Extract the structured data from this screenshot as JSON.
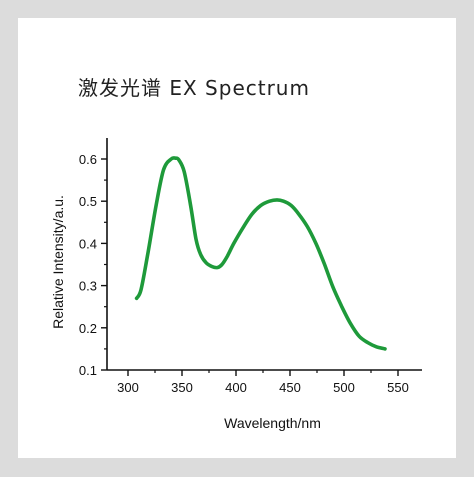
{
  "chart_data": {
    "type": "line",
    "title": "激发光谱 EX Spectrum",
    "xlabel": "Wavelength/nm",
    "ylabel": "Relative  Intensity/a.u.",
    "xlim": [
      300,
      560
    ],
    "ylim": [
      0.1,
      0.6
    ],
    "xticks": [
      300,
      350,
      400,
      450,
      500,
      550
    ],
    "yticks": [
      0.1,
      0.2,
      0.3,
      0.4,
      0.5,
      0.6
    ],
    "x_tick_labels": [
      "300",
      "350",
      "400",
      "450",
      "500",
      "550"
    ],
    "y_tick_labels": [
      "0.1",
      "0.2",
      "0.3",
      "0.4",
      "0.5",
      "0.6"
    ],
    "grid": false,
    "legend": "none",
    "line_color": "#1e9a3a",
    "series": [
      {
        "x": [
          308,
          312,
          318,
          326,
          333,
          340,
          344,
          347,
          352,
          358,
          363,
          367,
          372,
          378,
          383,
          387,
          392,
          398,
          406,
          415,
          423,
          431,
          438,
          444,
          451,
          458,
          466,
          474,
          482,
          490,
          498,
          506,
          514,
          522,
          530,
          538
        ],
        "y": [
          0.27,
          0.29,
          0.37,
          0.49,
          0.575,
          0.6,
          0.602,
          0.598,
          0.57,
          0.49,
          0.41,
          0.375,
          0.355,
          0.345,
          0.343,
          0.35,
          0.37,
          0.4,
          0.435,
          0.47,
          0.49,
          0.5,
          0.503,
          0.5,
          0.49,
          0.47,
          0.44,
          0.4,
          0.35,
          0.295,
          0.25,
          0.21,
          0.18,
          0.165,
          0.155,
          0.15
        ]
      }
    ]
  }
}
